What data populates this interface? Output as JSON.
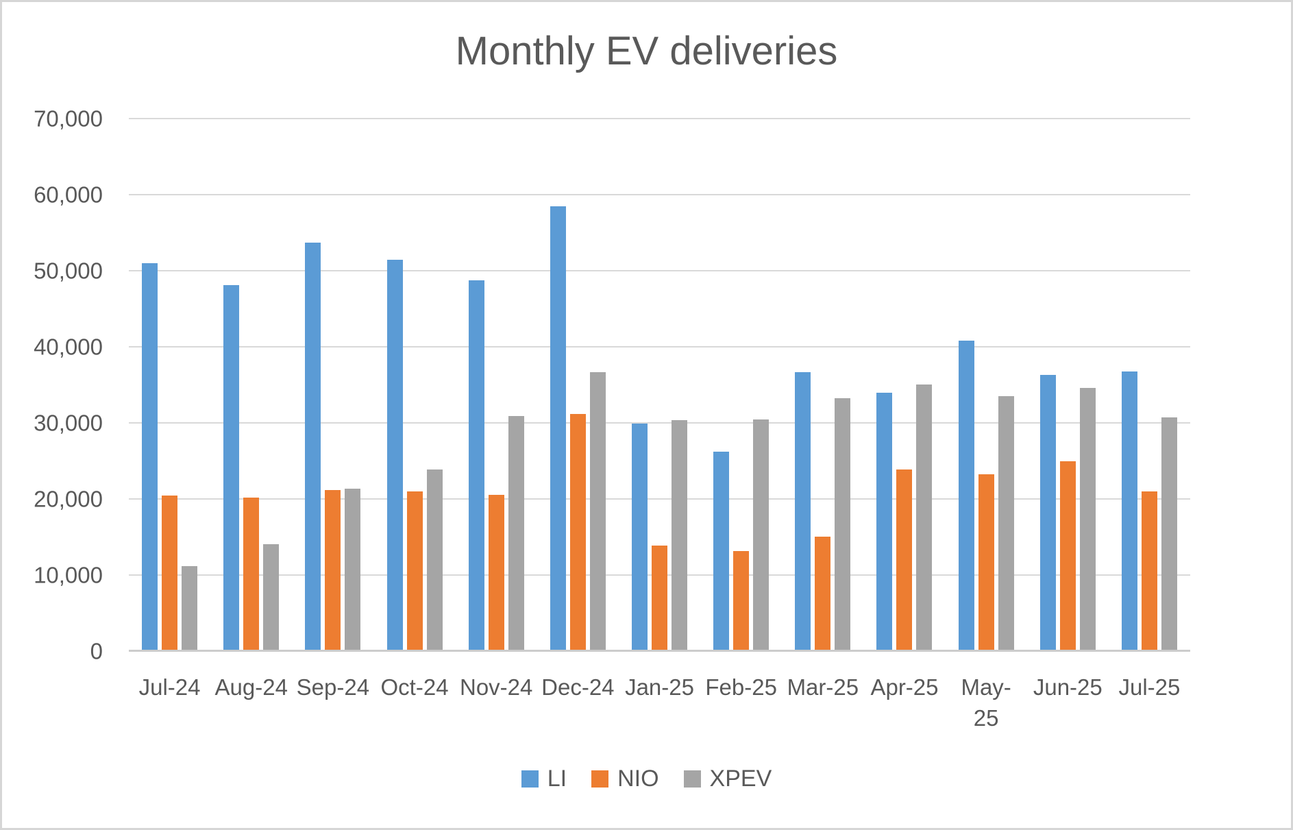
{
  "chart_data": {
    "type": "bar",
    "title": "Monthly EV deliveries",
    "categories": [
      "Jul-24",
      "Aug-24",
      "Sep-24",
      "Oct-24",
      "Nov-24",
      "Dec-24",
      "Jan-25",
      "Feb-25",
      "Mar-25",
      "Apr-25",
      "May-25",
      "Jun-25",
      "Jul-25"
    ],
    "categories_display": [
      "Jul-24",
      "Aug-24",
      "Sep-24",
      "Oct-24",
      "Nov-24",
      "Dec-24",
      "Jan-25",
      "Feb-25",
      "Mar-25",
      "Apr-25",
      "May-\n25",
      "Jun-25",
      "Jul-25"
    ],
    "series": [
      {
        "name": "LI",
        "color": "#5B9BD5",
        "values": [
          51000,
          48122,
          53709,
          51443,
          48740,
          58513,
          29927,
          26263,
          36674,
          33939,
          40856,
          36279,
          36717
        ]
      },
      {
        "name": "NIO",
        "color": "#ED7D31",
        "values": [
          20498,
          20176,
          21181,
          20976,
          20575,
          31138,
          13863,
          13192,
          15039,
          23900,
          23231,
          24925,
          21017
        ]
      },
      {
        "name": "XPEV",
        "color": "#A5A5A5",
        "values": [
          11145,
          14036,
          21352,
          23917,
          30895,
          36695,
          30350,
          30453,
          33205,
          35045,
          33525,
          34611,
          30731
        ]
      }
    ],
    "y_axis": {
      "min": 0,
      "max": 70000,
      "tick_step": 10000,
      "tick_labels": [
        "0",
        "10,000",
        "20,000",
        "30,000",
        "40,000",
        "50,000",
        "60,000",
        "70,000"
      ]
    },
    "grid": true,
    "legend_position": "bottom",
    "legend_labels": [
      "LI",
      "NIO",
      "XPEV"
    ]
  },
  "colors": {
    "text": "#595959",
    "gridline": "#d9d9d9",
    "axis_line": "#cccccc",
    "frame_border": "#d6d6d6",
    "series_li": "#5B9BD5",
    "series_nio": "#ED7D31",
    "series_xpev": "#A5A5A5"
  }
}
